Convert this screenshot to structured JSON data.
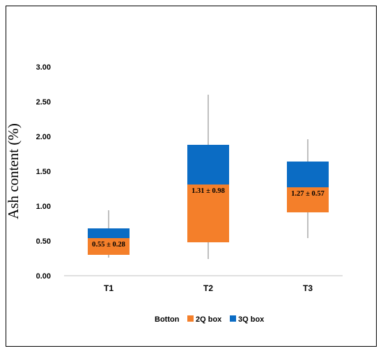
{
  "chart_data": {
    "type": "box",
    "ylabel": "Ash content (%)",
    "xlabel": "",
    "ylim": [
      0,
      3.0
    ],
    "yticks": [
      "0.00",
      "0.50",
      "1.00",
      "1.50",
      "2.00",
      "2.50",
      "3.00"
    ],
    "grid": false,
    "legend_position": "bottom",
    "legend": [
      "Botton",
      "2Q box",
      "3Q box"
    ],
    "colors": {
      "bottom": "transparent",
      "q2": "#F47F2A",
      "q3": "#0B6CC4",
      "whisker": "#7f7f7f"
    },
    "categories": [
      "T1",
      "T2",
      "T3"
    ],
    "boxes": [
      {
        "category": "T1",
        "min": 0.26,
        "q1": 0.3,
        "median": 0.54,
        "q3": 0.68,
        "max": 0.94,
        "label": "0.55 ± 0.28"
      },
      {
        "category": "T2",
        "min": 0.24,
        "q1": 0.48,
        "median": 1.31,
        "q3": 1.88,
        "max": 2.6,
        "label": "1.31 ± 0.98"
      },
      {
        "category": "T3",
        "min": 0.54,
        "q1": 0.91,
        "median": 1.27,
        "q3": 1.64,
        "max": 1.96,
        "label": "1.27 ± 0.57"
      }
    ]
  }
}
